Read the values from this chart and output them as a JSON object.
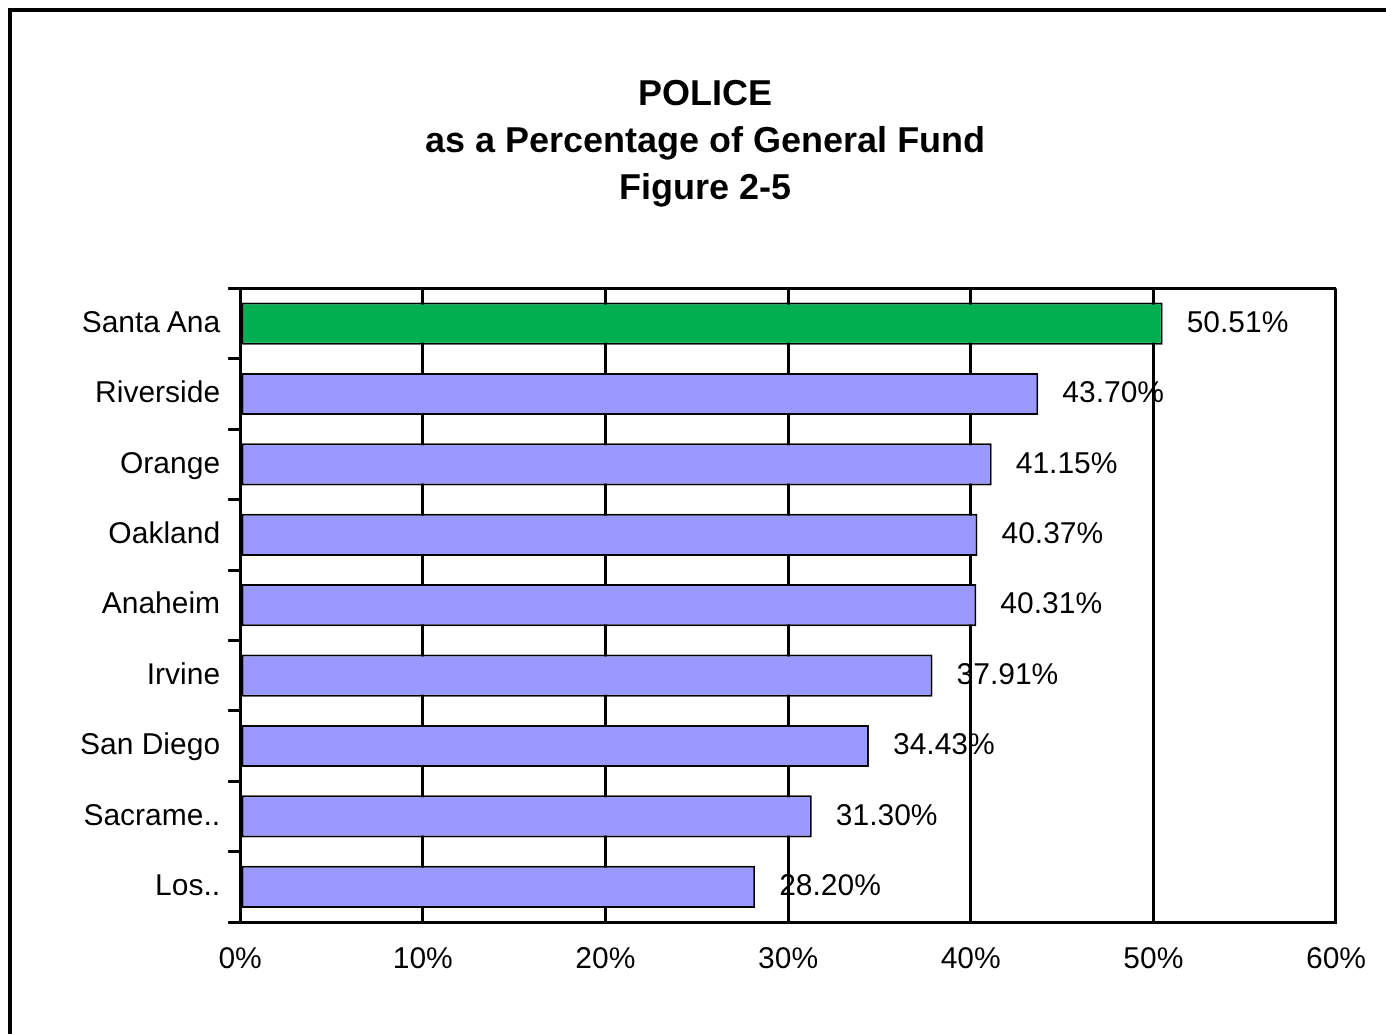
{
  "chart_data": {
    "type": "bar",
    "orientation": "horizontal",
    "title": "POLICE\nas a Percentage of General Fund\nFigure 2-5",
    "categories": [
      "Santa Ana",
      "Riverside",
      "Orange",
      "Oakland",
      "Anaheim",
      "Irvine",
      "San Diego",
      "Sacrame..",
      "Los.."
    ],
    "values": [
      50.51,
      43.7,
      41.15,
      40.37,
      40.31,
      37.91,
      34.43,
      31.3,
      28.2
    ],
    "colors": [
      "#00b050",
      "#9999ff",
      "#9999ff",
      "#9999ff",
      "#9999ff",
      "#9999ff",
      "#9999ff",
      "#9999ff",
      "#9999ff"
    ],
    "value_labels": [
      "50.51%",
      "43.70%",
      "41.15%",
      "40.37%",
      "40.31%",
      "37.91%",
      "34.43%",
      "31.30%",
      "28.20%"
    ],
    "xlim": [
      0,
      60
    ],
    "xticks": [
      {
        "value": 0,
        "label": "0%"
      },
      {
        "value": 10,
        "label": "10%"
      },
      {
        "value": 20,
        "label": "20%"
      },
      {
        "value": 30,
        "label": "30%"
      },
      {
        "value": 40,
        "label": "40%"
      },
      {
        "value": 50,
        "label": "50%"
      },
      {
        "value": 60,
        "label": "60%"
      }
    ],
    "grid": "x",
    "legend": false
  }
}
